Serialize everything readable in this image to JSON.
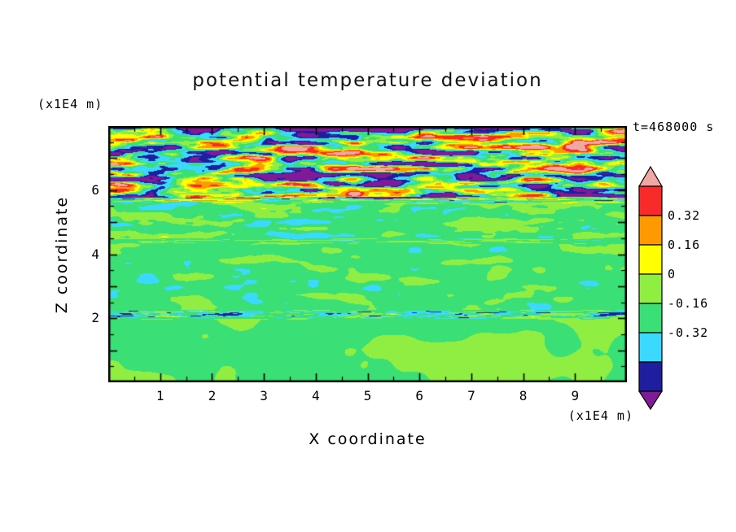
{
  "title": {
    "text": "potential temperature deviation"
  },
  "time_label": {
    "text": "t=468000 s"
  },
  "axes": {
    "x": {
      "label": "X coordinate",
      "unit": "(x1E4 m)",
      "range": [
        0,
        10
      ],
      "labeled_ticks": [
        1,
        2,
        3,
        4,
        5,
        6,
        7,
        8,
        9
      ],
      "minor_step": 0.5
    },
    "z": {
      "label": "Z coordinate",
      "unit": "(x1E4 m)",
      "range": [
        0,
        8
      ],
      "labeled_ticks": [
        2,
        4,
        6
      ],
      "minor_step": 0.5
    }
  },
  "colorbar": {
    "labels": [
      "0.32",
      "0.16",
      "0",
      "-0.16",
      "-0.32"
    ]
  },
  "chart_data": {
    "type": "heatmap",
    "title": "potential temperature deviation",
    "xlabel": "X coordinate",
    "ylabel": "Z coordinate",
    "x_axis_unit": "(x1E4 m)",
    "z_axis_unit": "(x1E4 m)",
    "time": "t=468000 s",
    "x_range": [
      0,
      10
    ],
    "z_range": [
      0,
      8
    ],
    "colorbar_tick_labels": [
      0.32,
      0.16,
      0,
      -0.16,
      -0.32
    ],
    "levels": [
      -0.48,
      -0.32,
      -0.16,
      0,
      0.16,
      0.32,
      0.48,
      0.64
    ],
    "colors": [
      "#801A96",
      "#1E1E9E",
      "#3CD9FF",
      "#3ADF76",
      "#90EE43",
      "#FFFF00",
      "#FF9900",
      "#F82A2A",
      "#F3A7A2"
    ],
    "description": "Filled-contour cross-section of potential temperature deviation at t=468000 s: nearly uniform green (values near 0) below z=2e4 m with faint lighter-green blobs, a thin cyan-blue shear line near z=2.1e4 m, weak horizontal wavy streaks between z=2.2e4 and 4.4e4 m, moderate yellow-green/cyan streaks between 4.4e4 and 5.7e4 m, and an intense turbulent gravity-wave breaking layer above z=5.7e4 m with red, orange, yellow, cyan, navy and pink horizontal bands, capped by dark navy/purple patches along the top edge.",
    "field": {
      "seed": 11,
      "octaves": 3,
      "gain": 2.2,
      "lacunarity_x": 2.1,
      "lacunarity_z": 1.5,
      "layers": [
        {
          "z0": 0.0,
          "z1": 2.0,
          "amp": 0.12,
          "bias": -0.04,
          "sx": 0.6,
          "sz": 1.0,
          "t": 0.18
        },
        {
          "z0": 2.0,
          "z1": 2.24,
          "amp": 0.45,
          "bias": -0.12,
          "sx": 2.6,
          "sz": 16.0,
          "t": 0.07
        },
        {
          "z0": 2.24,
          "z1": 4.4,
          "amp": 0.2,
          "bias": -0.06,
          "sx": 1.2,
          "sz": 3.4,
          "t": 0.2
        },
        {
          "z0": 4.4,
          "z1": 5.7,
          "amp": 0.3,
          "bias": -0.05,
          "sx": 1.3,
          "sz": 5.0,
          "t": 0.22
        },
        {
          "z0": 5.7,
          "z1": 8.0,
          "amp": 1.25,
          "bias": -0.03,
          "sx": 1.1,
          "sz": 6.0,
          "t": 0.28
        }
      ],
      "top_cap": {
        "z_start": 7.8,
        "strength": 2.8
      }
    }
  }
}
